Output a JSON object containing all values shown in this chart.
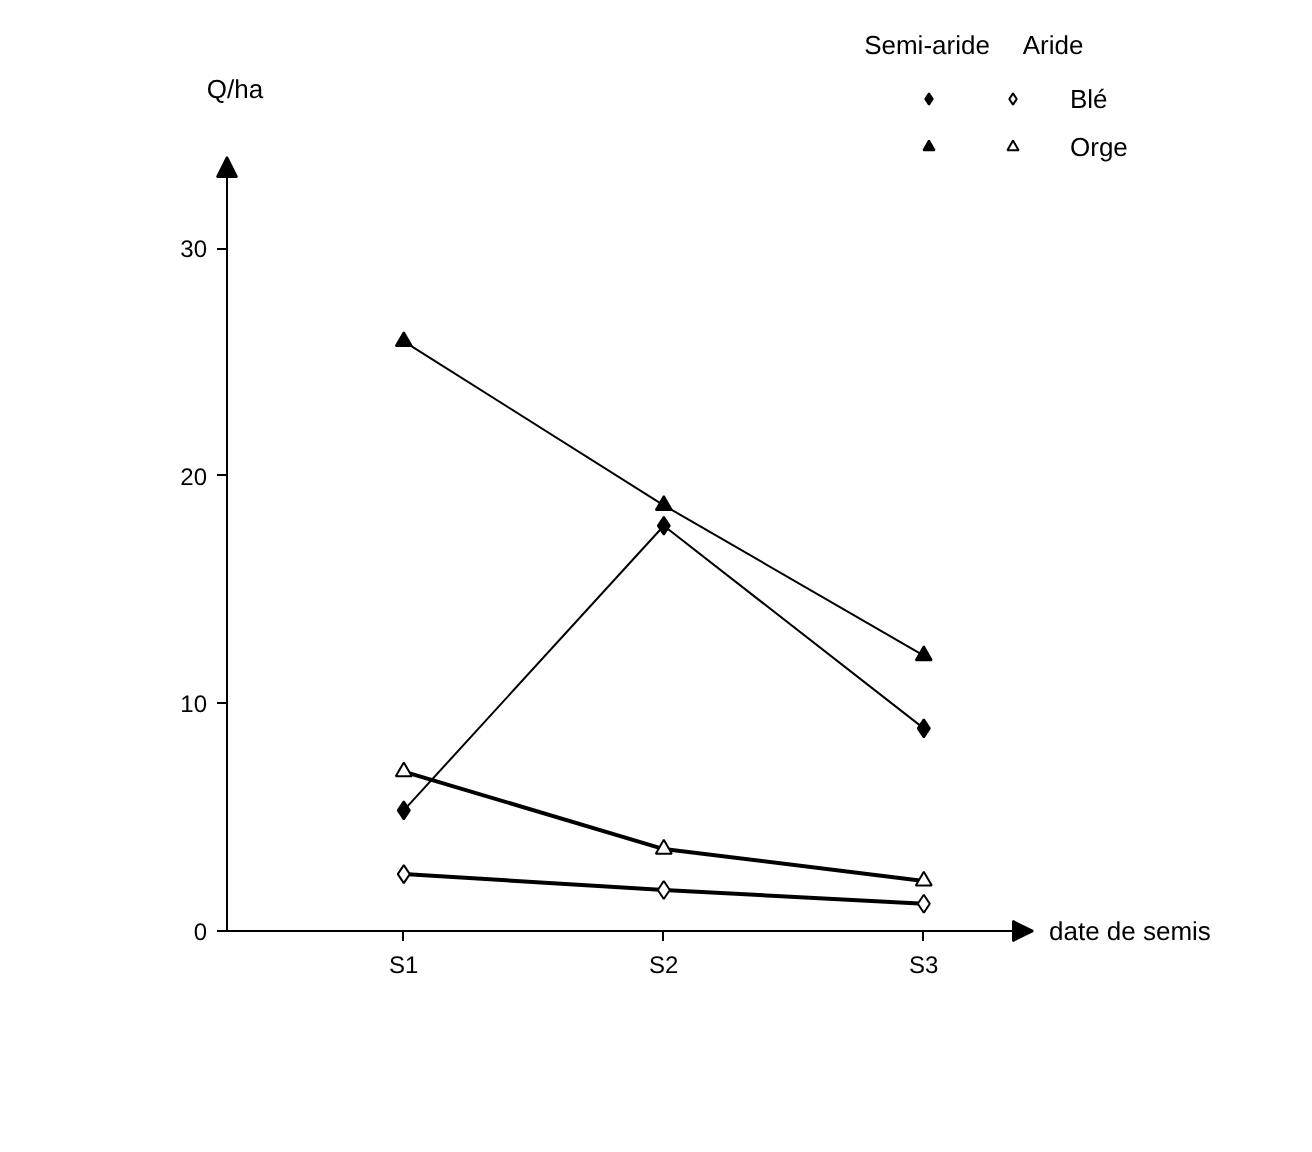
{
  "chart_data": {
    "type": "line",
    "xlabel": "date de semis",
    "ylabel": "Q/ha",
    "categories": [
      "S1",
      "S2",
      "S3"
    ],
    "ylim": [
      0,
      34
    ],
    "yticks": [
      0,
      10,
      20,
      30
    ],
    "grid": false,
    "legend": "top right",
    "annotations": [
      "Semi-aride",
      "Aride"
    ],
    "series": [
      {
        "color": "#000000",
        "marker": "diamond",
        "values": [
          5.3,
          17.8,
          8.9
        ]
      },
      {
        "color": "#000000",
        "marker": "triangle",
        "values": [
          25.9,
          18.7,
          12.1
        ]
      },
      {
        "name": "Blé",
        "color": "#ffffff",
        "marker": "diamond",
        "values": [
          2.5,
          1.8,
          1.2
        ]
      },
      {
        "name": "Orge",
        "color": "#ffffff",
        "marker": "triangle",
        "values": [
          7.0,
          3.6,
          2.2
        ]
      }
    ]
  }
}
